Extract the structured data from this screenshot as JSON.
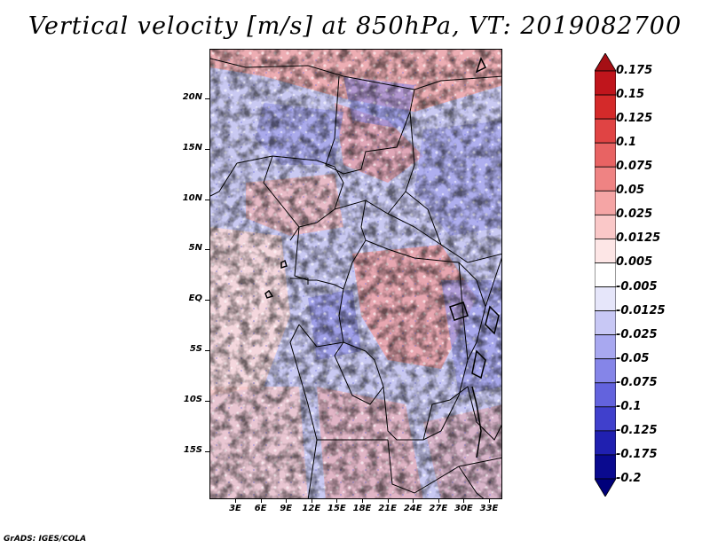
{
  "title": "Vertical velocity [m/s] at 850hPa, VT: 2019082700",
  "credit": "GrADS: IGES/COLA",
  "map": {
    "lat_ticks": [
      "20N",
      "15N",
      "10N",
      "5N",
      "EQ",
      "5S",
      "10S",
      "15S"
    ],
    "lon_ticks": [
      "3E",
      "6E",
      "9E",
      "12E",
      "15E",
      "18E",
      "21E",
      "24E",
      "27E",
      "30E",
      "33E"
    ]
  },
  "colorbar": {
    "labels": [
      "0.175",
      "0.15",
      "0.125",
      "0.1",
      "0.075",
      "0.05",
      "0.025",
      "0.0125",
      "0.005",
      "-0.005",
      "-0.0125",
      "-0.025",
      "-0.05",
      "-0.075",
      "-0.1",
      "-0.125",
      "-0.175",
      "-0.2"
    ],
    "colors": [
      "#a50f15",
      "#c0151c",
      "#d42a2a",
      "#e04444",
      "#e86363",
      "#ef8383",
      "#f5a5a5",
      "#fac8c8",
      "#fde6e6",
      "#ffffff",
      "#e6e6fa",
      "#c8c8f5",
      "#a8a8f0",
      "#8585e8",
      "#6363dd",
      "#4040cc",
      "#2020b0",
      "#0a0a8f",
      "#00007a"
    ]
  }
}
